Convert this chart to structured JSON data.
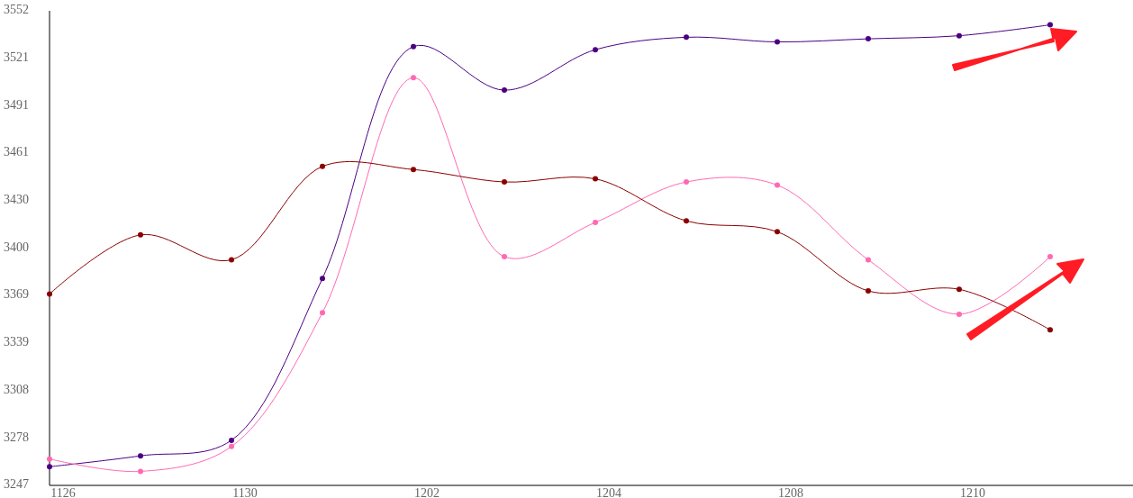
{
  "chart_data": {
    "type": "line",
    "categories": [
      "1126",
      null,
      "1130",
      null,
      "1202",
      null,
      "1204",
      null,
      "1208",
      null,
      "1210",
      null
    ],
    "series": [
      {
        "color": "#4b0082",
        "values": [
          3259,
          3266,
          3276,
          3380,
          3529,
          3501,
          3527,
          3535,
          3532,
          3534,
          3536,
          3543
        ]
      },
      {
        "color": "#ff69b4",
        "values": [
          3264,
          3256,
          3272,
          3358,
          3509,
          3394,
          3416,
          3442,
          3440,
          3392,
          3357,
          3394
        ]
      },
      {
        "color": "#8b0000",
        "values": [
          3370,
          3408,
          3392,
          3452,
          3450,
          3442,
          3444,
          3417,
          3410,
          3372,
          3373,
          3347
        ]
      }
    ],
    "ylim": [
      3247,
      3552
    ],
    "yticks": [
      3247,
      {
        "value": 3277.5,
        "label": "3278"
      },
      3308,
      {
        "value": 3338.5,
        "label": "3339"
      },
      3369,
      {
        "value": 3399.5,
        "label": "3400"
      },
      3430,
      {
        "value": 3460.5,
        "label": "3461"
      },
      3491,
      {
        "value": 3521.5,
        "label": "3521"
      },
      3552
    ],
    "grid": false,
    "marker": "circle",
    "line_style": "solid"
  }
}
